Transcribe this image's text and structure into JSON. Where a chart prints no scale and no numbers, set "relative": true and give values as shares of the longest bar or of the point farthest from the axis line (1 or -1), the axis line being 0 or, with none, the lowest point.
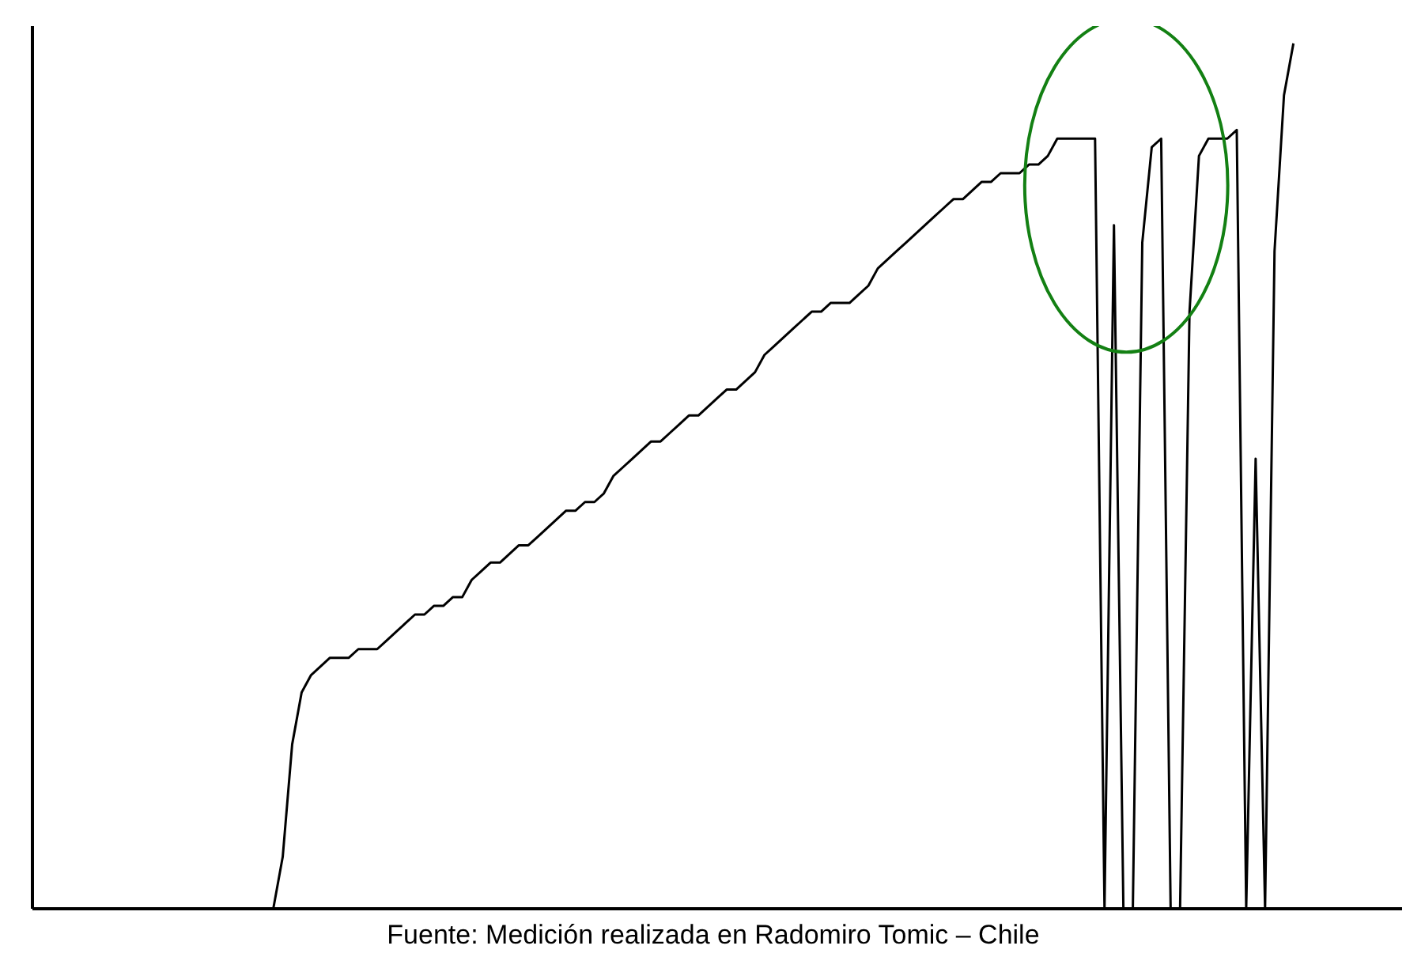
{
  "chart_data": {
    "type": "line",
    "relative": true,
    "annotations": [
      "Fuente: Medición  realizada en Radomiro Tomic – Chile"
    ],
    "categories": [
      null,
      null,
      null,
      null,
      null,
      null,
      null,
      null,
      null,
      null,
      null,
      null,
      null,
      null,
      null,
      null,
      null,
      null,
      null,
      null,
      null,
      null,
      null,
      null,
      null,
      null,
      null,
      null,
      null,
      null,
      null,
      null,
      null,
      null,
      null,
      null,
      null,
      null,
      null,
      null,
      null,
      null,
      null,
      null,
      null,
      null,
      null,
      null,
      null,
      null,
      null,
      null,
      null,
      null,
      null,
      null,
      null,
      null,
      null,
      null,
      null,
      null,
      null,
      null,
      null,
      null,
      null,
      null,
      null,
      null,
      null,
      null,
      null,
      null,
      null,
      null,
      null,
      null,
      null,
      null,
      null,
      null,
      null,
      null,
      null,
      null,
      null,
      null,
      null,
      null,
      null,
      null,
      null,
      null,
      null,
      null,
      null,
      null,
      null,
      null,
      null,
      null,
      null,
      null,
      null,
      null,
      null,
      null,
      null,
      null,
      null,
      null,
      null,
      null,
      null,
      null,
      null,
      null,
      null,
      null,
      null,
      null,
      null,
      null,
      null,
      null,
      null,
      null,
      null,
      null,
      null,
      null,
      null,
      null,
      null,
      null,
      null,
      null,
      null,
      null,
      null,
      null,
      null,
      null,
      null
    ],
    "series": [
      {
        "color": "#000000",
        "values": [
          null,
          null,
          null,
          null,
          null,
          null,
          null,
          null,
          null,
          null,
          null,
          null,
          null,
          null,
          null,
          null,
          null,
          null,
          null,
          null,
          null,
          null,
          null,
          null,
          null,
          0,
          0.06,
          0.19,
          0.25,
          0.27,
          0.28,
          0.29,
          0.29,
          0.29,
          0.3,
          0.3,
          0.3,
          0.31,
          0.32,
          0.33,
          0.34,
          0.34,
          0.35,
          0.35,
          0.36,
          0.36,
          0.38,
          0.39,
          0.4,
          0.4,
          0.41,
          0.42,
          0.42,
          0.43,
          0.44,
          0.45,
          0.46,
          0.46,
          0.47,
          0.47,
          0.48,
          0.5,
          0.51,
          0.52,
          0.53,
          0.54,
          0.54,
          0.55,
          0.56,
          0.57,
          0.57,
          0.58,
          0.59,
          0.6,
          0.6,
          0.61,
          0.62,
          0.64,
          0.65,
          0.66,
          0.67,
          0.68,
          0.69,
          0.69,
          0.7,
          0.7,
          0.7,
          0.71,
          0.72,
          0.74,
          0.75,
          0.76,
          0.77,
          0.78,
          0.79,
          0.8,
          0.81,
          0.82,
          0.82,
          0.83,
          0.84,
          0.84,
          0.85,
          0.85,
          0.85,
          0.86,
          0.86,
          0.87,
          0.89,
          0.89,
          0.89,
          0.89,
          0.89,
          0,
          0.79,
          0,
          0,
          0.77,
          0.88,
          0.89,
          0,
          0,
          0.69,
          0.87,
          0.89,
          0.89,
          0.89,
          0.9,
          0,
          0.52,
          0,
          0.76,
          0.94,
          1,
          null,
          null,
          null,
          null,
          null,
          null,
          null,
          null,
          null,
          null,
          null
        ]
      }
    ]
  }
}
